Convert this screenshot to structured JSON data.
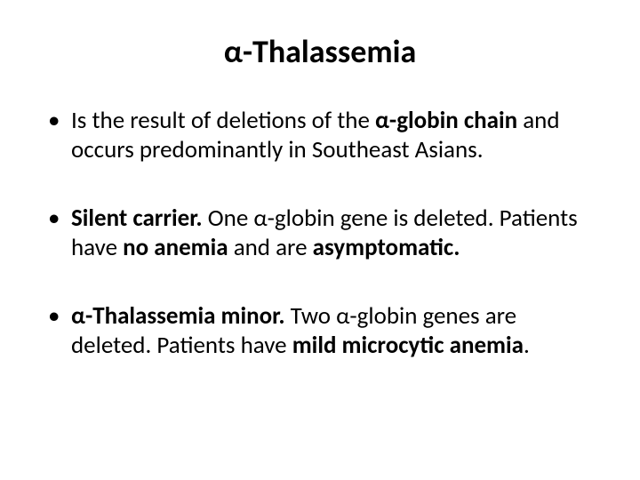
{
  "slide": {
    "title": "α-Thalassemia",
    "title_fontsize": 36,
    "body_fontsize": 27,
    "line_height": 1.22,
    "background_color": "#ffffff",
    "text_color": "#000000",
    "font_family": "Calibri",
    "bullets": [
      {
        "runs": [
          {
            "t": "Is the result of deletions of the ",
            "b": false
          },
          {
            "t": "α-globin chain",
            "b": true
          },
          {
            "t": " and occurs predominantly in Southeast Asians.",
            "b": false
          }
        ]
      },
      {
        "runs": [
          {
            "t": "Silent carrier. ",
            "b": true
          },
          {
            "t": "One α-globin gene is deleted. Patients have ",
            "b": false
          },
          {
            "t": "no anemia ",
            "b": true
          },
          {
            "t": "and are ",
            "b": false
          },
          {
            "t": "asymptomatic.",
            "b": true
          }
        ]
      },
      {
        "runs": [
          {
            "t": "α-Thalassemia minor. ",
            "b": true
          },
          {
            "t": "Two α-globin genes are deleted. Patients have ",
            "b": false
          },
          {
            "t": "mild microcytic anemia",
            "b": true
          },
          {
            "t": ".",
            "b": false
          }
        ]
      }
    ]
  }
}
